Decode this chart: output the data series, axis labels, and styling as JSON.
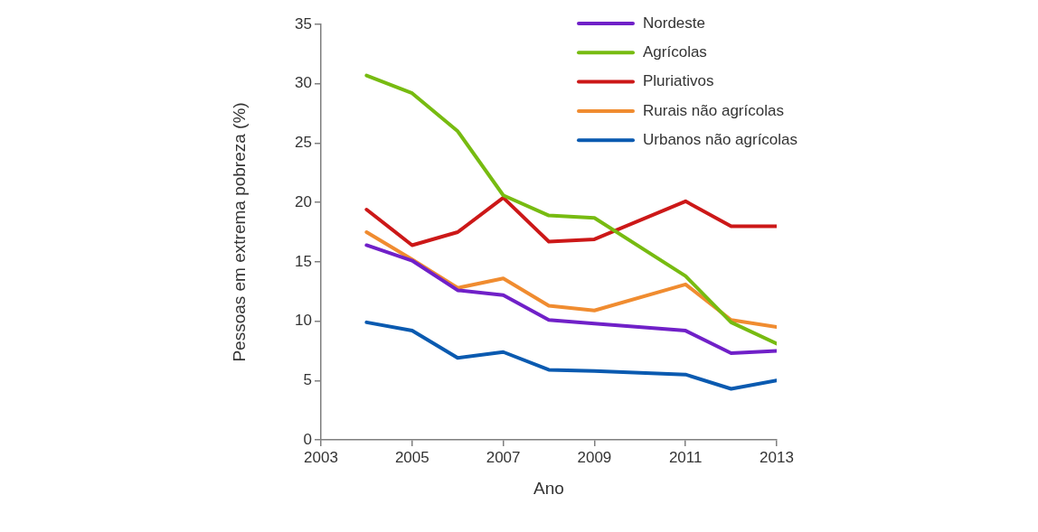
{
  "chart_data": {
    "type": "line",
    "xlabel": "Ano",
    "ylabel": "Pessoas em extrema pobreza (%)",
    "x": [
      2004,
      2005,
      2006,
      2007,
      2008,
      2009,
      2011,
      2012,
      2013
    ],
    "series": [
      {
        "name": "Nordeste",
        "color": "#7020c8",
        "values": [
          16.4,
          15.1,
          12.6,
          12.2,
          10.1,
          9.8,
          9.2,
          7.3,
          7.5
        ]
      },
      {
        "name": "Agrícolas",
        "color": "#77bb11",
        "values": [
          30.7,
          29.2,
          26.0,
          20.6,
          18.9,
          18.7,
          13.8,
          9.9,
          8.1
        ]
      },
      {
        "name": "Pluriativos",
        "color": "#cc1818",
        "values": [
          19.4,
          16.4,
          17.5,
          20.4,
          16.7,
          16.9,
          20.1,
          18.0,
          18.0
        ]
      },
      {
        "name": "Rurais não agrícolas",
        "color": "#f08c30",
        "values": [
          17.5,
          15.2,
          12.8,
          13.6,
          11.3,
          10.9,
          13.1,
          10.1,
          9.5
        ]
      },
      {
        "name": "Urbanos não agrícolas",
        "color": "#0a5ab0",
        "values": [
          9.9,
          9.2,
          6.9,
          7.4,
          5.9,
          5.8,
          5.5,
          4.3,
          5.0
        ]
      }
    ],
    "xlim": [
      2003,
      2013
    ],
    "xticks": [
      2003,
      2005,
      2007,
      2009,
      2011,
      2013
    ],
    "ylim": [
      0,
      35
    ],
    "yticks": [
      0,
      5,
      10,
      15,
      20,
      25,
      30,
      35
    ],
    "grid": false,
    "legend": "top right",
    "marker": "none",
    "line_style": "solid"
  }
}
